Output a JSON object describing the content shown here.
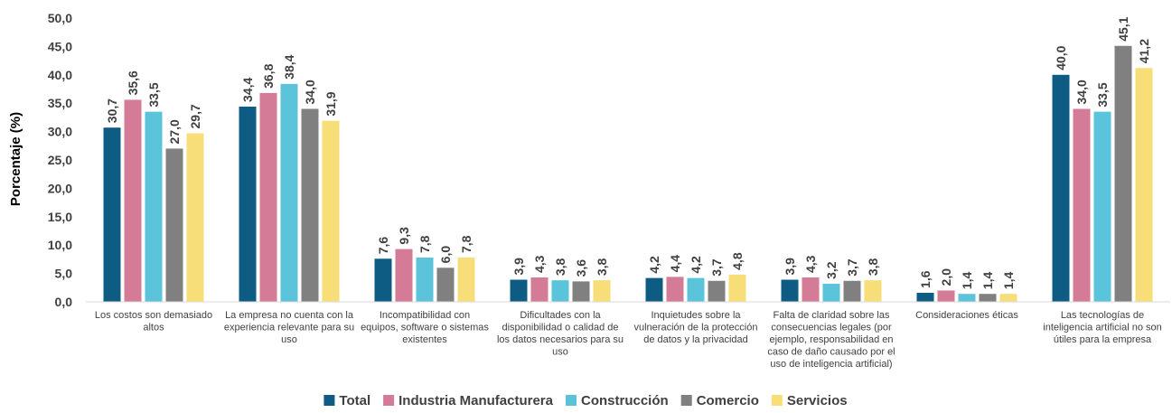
{
  "chart_data": {
    "type": "bar",
    "title": "",
    "xlabel": "",
    "ylabel": "Porcentaje (%)",
    "ylim": [
      0,
      50
    ],
    "yticks": [
      "0,0",
      "5,0",
      "10,0",
      "15,0",
      "20,0",
      "25,0",
      "30,0",
      "35,0",
      "40,0",
      "45,0",
      "50,0"
    ],
    "categories": [
      [
        "Los costos son demasiado",
        "altos"
      ],
      [
        "La empresa no cuenta con la",
        "experiencia relevante para su",
        "uso"
      ],
      [
        "Incompatibilidad con",
        "equipos, software o sistemas",
        "existentes"
      ],
      [
        "Dificultades con la",
        "disponibilidad o calidad de",
        "los datos necesarios para su",
        "uso"
      ],
      [
        "Inquietudes sobre la",
        "vulneración de la protección",
        "de datos y la privacidad"
      ],
      [
        "Falta de claridad sobre las",
        "consecuencias legales (por",
        "ejemplo, responsabilidad en",
        "caso de daño causado por el",
        "uso de inteligencia artificial)"
      ],
      [
        "Consideraciones éticas"
      ],
      [
        "Las tecnologías de",
        "inteligencia artificial no son",
        "útiles para la empresa"
      ]
    ],
    "series": [
      {
        "name": "Total",
        "color": "#0E5C84",
        "values": [
          30.7,
          34.4,
          7.6,
          3.9,
          4.2,
          3.9,
          1.6,
          40.0
        ],
        "labels": [
          "30,7",
          "34,4",
          "7,6",
          "3,9",
          "4,2",
          "3,9",
          "1,6",
          "40,0"
        ]
      },
      {
        "name": "Industria Manufacturera",
        "color": "#D47B97",
        "values": [
          35.6,
          36.8,
          9.3,
          4.3,
          4.4,
          4.3,
          2.0,
          34.0
        ],
        "labels": [
          "35,6",
          "36,8",
          "9,3",
          "4,3",
          "4,4",
          "4,3",
          "2,0",
          "34,0"
        ]
      },
      {
        "name": "Construcción",
        "color": "#5BC4DA",
        "values": [
          33.5,
          38.4,
          7.8,
          3.8,
          4.2,
          3.2,
          1.4,
          33.5
        ],
        "labels": [
          "33,5",
          "38,4",
          "7,8",
          "3,8",
          "4,2",
          "3,2",
          "1,4",
          "33,5"
        ]
      },
      {
        "name": "Comercio",
        "color": "#808080",
        "values": [
          27.0,
          34.0,
          6.0,
          3.6,
          3.7,
          3.7,
          1.4,
          45.1
        ],
        "labels": [
          "27,0",
          "34,0",
          "6,0",
          "3,6",
          "3,7",
          "3,7",
          "1,4",
          "45,1"
        ]
      },
      {
        "name": "Servicios",
        "color": "#F7DE79",
        "values": [
          29.7,
          31.9,
          7.8,
          3.8,
          4.8,
          3.8,
          1.4,
          41.2
        ],
        "labels": [
          "29,7",
          "31,9",
          "7,8",
          "3,8",
          "4,8",
          "3,8",
          "1,4",
          "41,2"
        ]
      }
    ],
    "legend_position": "bottom",
    "grid": false
  }
}
